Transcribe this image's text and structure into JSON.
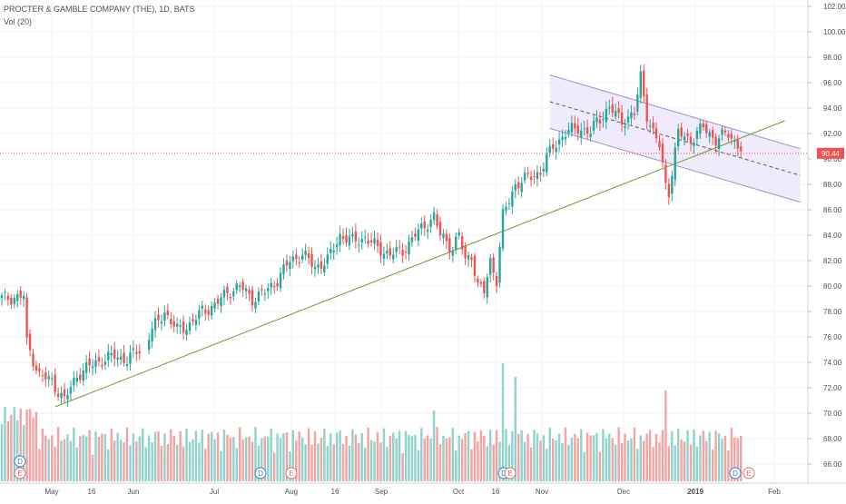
{
  "header": {
    "title": "PROCTER & GAMBLE COMPANY (THE), 1D, BATS",
    "volume_label": "Vol (20)"
  },
  "colors": {
    "up": "#26a69a",
    "down": "#ef5350",
    "up_vol": "#8fd3cc",
    "down_vol": "#f4a3a1",
    "trendline": "#6b9a3a",
    "channel_fill": "#ede8fa",
    "channel_line": "#9e8fd6",
    "grid": "#eef0f3",
    "price_line": "#ef5350"
  },
  "chart_data": {
    "type": "candlestick",
    "symbol": "PROCTER & GAMBLE COMPANY (THE)",
    "interval": "1D",
    "source": "BATS",
    "y_axis": {
      "ticks": [
        "102.00",
        "100.00",
        "98.00",
        "96.00",
        "94.00",
        "92.00",
        "90.00",
        "88.00",
        "86.00",
        "84.00",
        "82.00",
        "80.00",
        "78.00",
        "76.00",
        "74.00",
        "72.00",
        "70.00",
        "68.00",
        "66.00"
      ],
      "ylim": [
        64.5,
        102.5
      ]
    },
    "x_axis": {
      "ticks": [
        "May",
        "16",
        "Jun",
        "Jul",
        "Aug",
        "16",
        "Sep",
        "Oct",
        "16",
        "Nov",
        "Dec",
        "2019",
        "Feb"
      ]
    },
    "last_price": "90.44",
    "last_price_value": 90.44,
    "series_close_waypoints": [
      [
        0,
        79.0
      ],
      [
        7,
        79.2
      ],
      [
        8,
        75.5
      ],
      [
        12,
        73.0
      ],
      [
        16,
        72.5
      ],
      [
        20,
        71.0
      ],
      [
        24,
        73.0
      ],
      [
        30,
        74.0
      ],
      [
        36,
        74.5
      ],
      [
        40,
        74.2
      ],
      [
        44,
        75.0
      ],
      [
        48,
        76.5
      ],
      [
        52,
        78.0
      ],
      [
        56,
        76.5
      ],
      [
        60,
        77.0
      ],
      [
        64,
        78.0
      ],
      [
        68,
        78.5
      ],
      [
        72,
        79.5
      ],
      [
        76,
        80.0
      ],
      [
        80,
        79.0
      ],
      [
        84,
        79.5
      ],
      [
        88,
        80.5
      ],
      [
        92,
        82.0
      ],
      [
        96,
        82.5
      ],
      [
        100,
        81.5
      ],
      [
        104,
        82.0
      ],
      [
        108,
        84.0
      ],
      [
        112,
        83.5
      ],
      [
        116,
        83.8
      ],
      [
        120,
        83.0
      ],
      [
        124,
        82.5
      ],
      [
        128,
        82.8
      ],
      [
        132,
        84.0
      ],
      [
        136,
        85.0
      ],
      [
        138,
        85.5
      ],
      [
        140,
        84.0
      ],
      [
        144,
        83.0
      ],
      [
        146,
        84.0
      ],
      [
        148,
        82.0
      ],
      [
        150,
        82.5
      ],
      [
        152,
        80.0
      ],
      [
        154,
        79.5
      ],
      [
        156,
        82.0
      ],
      [
        158,
        80.5
      ],
      [
        160,
        85.5
      ],
      [
        164,
        88.0
      ],
      [
        168,
        88.5
      ],
      [
        172,
        89.0
      ],
      [
        176,
        91.0
      ],
      [
        180,
        92.0
      ],
      [
        184,
        92.5
      ],
      [
        188,
        92.0
      ],
      [
        190,
        93.0
      ],
      [
        194,
        94.0
      ],
      [
        198,
        93.0
      ],
      [
        202,
        93.5
      ],
      [
        204,
        96.5
      ],
      [
        206,
        93.5
      ],
      [
        208,
        92.0
      ],
      [
        210,
        91.0
      ],
      [
        212,
        88.0
      ],
      [
        213,
        87.5
      ],
      [
        216,
        92.0
      ],
      [
        220,
        91.5
      ],
      [
        224,
        92.5
      ],
      [
        228,
        91.5
      ],
      [
        232,
        92.0
      ],
      [
        236,
        90.8
      ]
    ],
    "notable_annotations": {
      "trendline": "rising support line from early May to January",
      "channel": "descending regression channel from November to January"
    },
    "event_markers": [
      {
        "label": "D",
        "type": "dividend"
      },
      {
        "label": "E",
        "type": "earnings"
      },
      {
        "label": "D",
        "type": "dividend"
      },
      {
        "label": "E",
        "type": "earnings"
      },
      {
        "label": "D",
        "type": "dividend"
      },
      {
        "label": "E",
        "type": "earnings"
      },
      {
        "label": "D",
        "type": "dividend"
      },
      {
        "label": "E",
        "type": "earnings"
      }
    ],
    "volume": {
      "label": "Vol (20)"
    },
    "grid": true
  }
}
